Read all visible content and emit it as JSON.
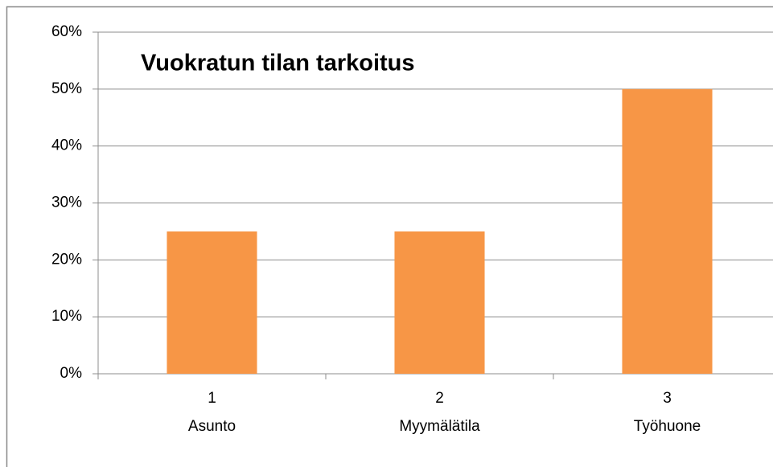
{
  "chart_data": {
    "type": "bar",
    "title": "Vuokratun tilan tarkoitus",
    "category_codes": [
      1,
      2,
      3
    ],
    "categories": [
      "Asunto",
      "Myymälätila",
      "Työhuone"
    ],
    "values": [
      25,
      25,
      50
    ],
    "color": "#f79646",
    "ylim": [
      0,
      60
    ],
    "yticks": [
      {
        "value": 0,
        "label": "0%"
      },
      {
        "value": 10,
        "label": "10%"
      },
      {
        "value": 20,
        "label": "20%"
      },
      {
        "value": 30,
        "label": "30%"
      },
      {
        "value": 40,
        "label": "40%"
      },
      {
        "value": 50,
        "label": "50%"
      },
      {
        "value": 60,
        "label": "60%"
      }
    ],
    "grid": true
  }
}
